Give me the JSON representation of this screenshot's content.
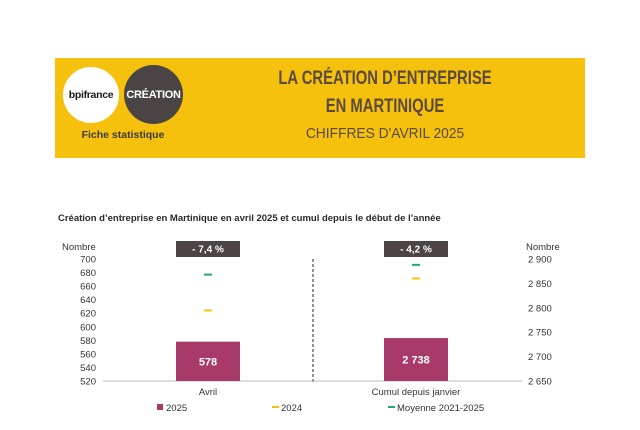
{
  "header": {
    "logo_left": "bpifrance",
    "logo_right": "CRÉATION",
    "fiche": "Fiche statistique",
    "title_line1": "LA CRÉATION D’ENTREPRISE",
    "title_line2": "EN MARTINIQUE",
    "subtitle": "CHIFFRES D'AVRIL 2025"
  },
  "colors": {
    "banner": "#f6c10c",
    "bar_2025": "#a73a68",
    "marker_2024": "#f6c10c",
    "marker_avg": "#1ea882",
    "badge": "#4d4545"
  },
  "chart_data": {
    "type": "bar",
    "title": "Création d’entreprise en Martinique en avril 2025 et cumul depuis le début de l’année",
    "left_axis": {
      "label": "Nombre",
      "ylim": [
        520,
        700
      ],
      "ticks": [
        "700",
        "680",
        "660",
        "640",
        "620",
        "600",
        "580",
        "560",
        "540",
        "520"
      ]
    },
    "right_axis": {
      "label": "Nombre",
      "ylim": [
        2650,
        2900
      ],
      "ticks": [
        "2 900",
        "2 850",
        "2 800",
        "2 750",
        "2 700",
        "2 650"
      ]
    },
    "categories": [
      "Avril",
      "Cumul depuis janvier"
    ],
    "series": [
      {
        "name": "2025",
        "values": [
          578,
          2738
        ],
        "value_labels": [
          "578",
          "2 738"
        ]
      },
      {
        "name": "2024",
        "values": [
          624,
          2860
        ]
      },
      {
        "name": "Moyenne 2021-2025",
        "values": [
          677,
          2888
        ]
      }
    ],
    "badges": [
      "- 7,4 %",
      "- 4,2 %"
    ],
    "legend": [
      "2025",
      "2024",
      "Moyenne 2021-2025"
    ],
    "legend_position": "bottom"
  }
}
